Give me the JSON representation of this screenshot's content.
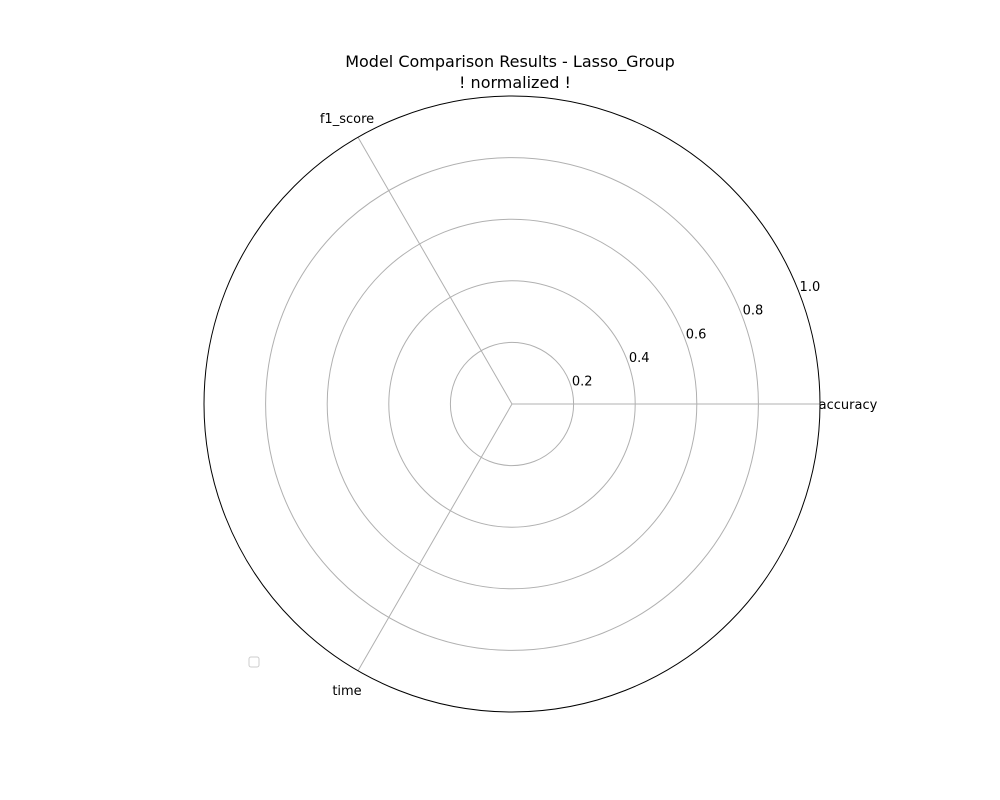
{
  "chart_data": {
    "type": "radar",
    "title": "Model Comparison Results - Lasso_Group",
    "subtitle": "! normalized !",
    "axes": [
      "accuracy",
      "f1_score",
      "time"
    ],
    "radial_ticks": [
      "0.2",
      "0.4",
      "0.6",
      "0.8",
      "1.0"
    ],
    "radial_tick_values": [
      0.2,
      0.4,
      0.6,
      0.8,
      1.0
    ],
    "rlim": [
      0,
      1.0
    ],
    "series": [],
    "grid": true,
    "legend": {
      "entries": [],
      "placement": "lower-left"
    }
  },
  "colors": {
    "grid": "#b0b0b0",
    "frame": "#000000",
    "legend_border": "#cccccc"
  }
}
